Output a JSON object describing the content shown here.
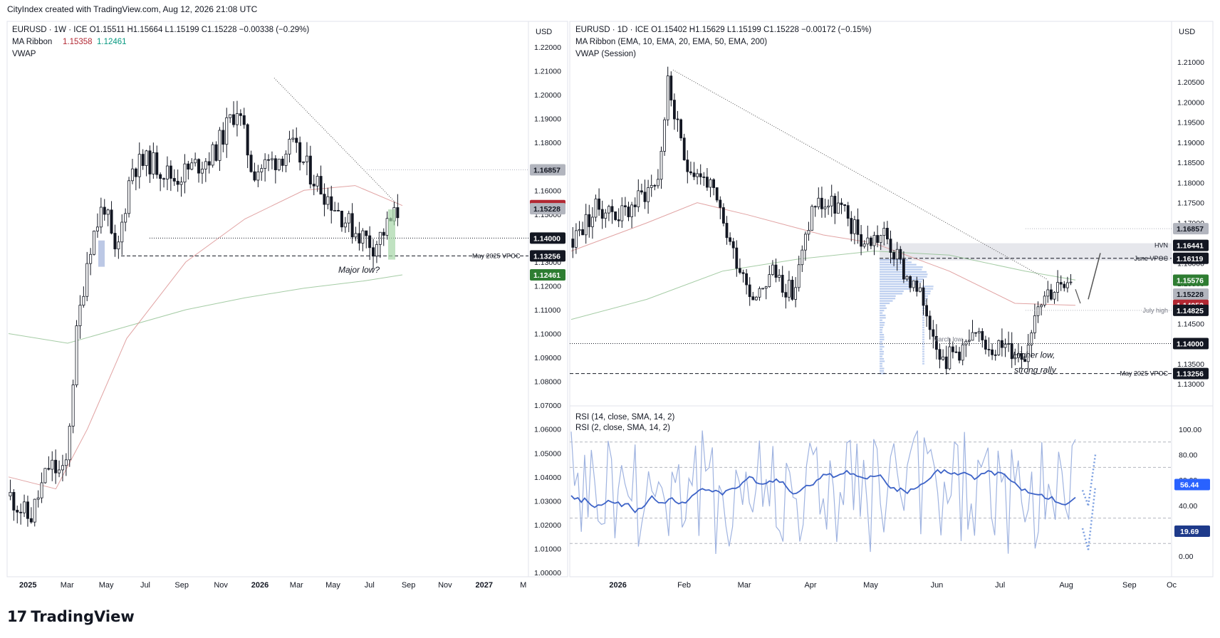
{
  "header": {
    "credit": "CityIndex created with TradingView.com, Aug 12, 2026 21:08 UTC"
  },
  "brand": {
    "logo": "17",
    "name": "TradingView"
  },
  "chart_data": [
    {
      "type": "candlestick",
      "panel": "left",
      "symbol_line": "EURUSD · 1W · ICE   O1.15511  H1.15664  L1.15199  C1.15228  −0.00338 (−0.29%)",
      "ma_line": {
        "label": "MA Ribbon",
        "v1": "1.15358",
        "v2": "1.12461",
        "c1": "#b22833",
        "c2": "#089981"
      },
      "vwap_label": "VWAP",
      "currency": "USD",
      "ylim": [
        1.0,
        1.22
      ],
      "y_ticks": [
        "1.22000",
        "1.21000",
        "1.20000",
        "1.19000",
        "1.18000",
        "1.17000",
        "1.16000",
        "1.15000",
        "1.14000",
        "1.13000",
        "1.12000",
        "1.11000",
        "1.10000",
        "1.09000",
        "1.08000",
        "1.07000",
        "1.06000",
        "1.05000",
        "1.04000",
        "1.03000",
        "1.02000",
        "1.01000",
        "1.00000"
      ],
      "x_ticks": [
        "2025",
        "Mar",
        "May",
        "Jul",
        "Sep",
        "Nov",
        "2026",
        "Mar",
        "May",
        "Jul",
        "Sep",
        "Nov",
        "2027",
        "M"
      ],
      "x_tick_pos": [
        0.04,
        0.115,
        0.19,
        0.265,
        0.335,
        0.41,
        0.485,
        0.555,
        0.625,
        0.695,
        0.77,
        0.84,
        0.915,
        0.99
      ],
      "price_badges": [
        {
          "text": "1.16857",
          "value": 1.16857,
          "bg": "#b2b5be",
          "fg": "#131722"
        },
        {
          "text": "1.15358",
          "value": 1.15358,
          "bg": "#b22833",
          "fg": "#ffffff"
        },
        {
          "text": "1.15228",
          "value": 1.15228,
          "bg": "#b2b5be",
          "fg": "#131722"
        },
        {
          "text": "1.14000",
          "value": 1.14,
          "bg": "#131722",
          "fg": "#ffffff"
        },
        {
          "text": "1.13256",
          "value": 1.13256,
          "bg": "#131722",
          "fg": "#ffffff"
        },
        {
          "text": "1.12461",
          "value": 1.12461,
          "bg": "#2e7d32",
          "fg": "#ffffff"
        }
      ],
      "annotations": [
        {
          "text": "May 2025 VPOC",
          "value": 1.13256
        },
        {
          "text": "Major low?",
          "value": 1.1255
        }
      ]
    },
    {
      "type": "candlestick",
      "panel": "right",
      "symbol_line": "EURUSD · 1D · ICE   O1.15402  H1.15629  L1.15199  C1.15228  −0.00172 (−0.15%)",
      "ma_line": {
        "label": "MA Ribbon (EMA, 10, EMA, 20, EMA, 50, EMA, 200)"
      },
      "vwap_label": "VWAP (Session)",
      "currency": "USD",
      "ylim": [
        1.127,
        1.213
      ],
      "y_ticks": [
        "1.21000",
        "1.20500",
        "1.20000",
        "1.19500",
        "1.19000",
        "1.18500",
        "1.18000",
        "1.17500",
        "1.17000",
        "1.16500",
        "1.16000",
        "1.15500",
        "1.15000",
        "1.14500",
        "1.14000",
        "1.13500",
        "1.13000"
      ],
      "x_ticks": [
        "2026",
        "Feb",
        "Mar",
        "Apr",
        "May",
        "Jun",
        "Jul",
        "Aug",
        "Sep",
        "Oc"
      ],
      "x_tick_pos": [
        0.08,
        0.19,
        0.29,
        0.4,
        0.5,
        0.61,
        0.715,
        0.825,
        0.93,
        1.0
      ],
      "price_badges": [
        {
          "text": "1.16857",
          "value": 1.16857,
          "bg": "#b2b5be",
          "fg": "#131722"
        },
        {
          "text": "1.16441",
          "value": 1.16441,
          "bg": "#131722",
          "fg": "#ffffff"
        },
        {
          "text": "1.16119",
          "value": 1.16119,
          "bg": "#131722",
          "fg": "#ffffff"
        },
        {
          "text": "1.15576",
          "value": 1.15576,
          "bg": "#2e7d32",
          "fg": "#ffffff"
        },
        {
          "text": "1.15228",
          "value": 1.15228,
          "bg": "#b2b5be",
          "fg": "#131722"
        },
        {
          "text": "1.14952",
          "value": 1.14952,
          "bg": "#b22833",
          "fg": "#ffffff"
        },
        {
          "text": "1.14825",
          "value": 1.14825,
          "bg": "#131722",
          "fg": "#ffffff"
        },
        {
          "text": "1.14000",
          "value": 1.14,
          "bg": "#131722",
          "fg": "#ffffff"
        },
        {
          "text": "1.13256",
          "value": 1.13256,
          "bg": "#131722",
          "fg": "#ffffff"
        }
      ],
      "annotations": [
        {
          "text": "HVN",
          "value": 1.16441
        },
        {
          "text": "June VPOC",
          "value": 1.16119
        },
        {
          "text": "July high",
          "value": 1.14825
        },
        {
          "text": "March low",
          "value": 1.14
        },
        {
          "text": "Higher low,",
          "value": 1.1365
        },
        {
          "text": "strong rally",
          "value": 1.1335
        },
        {
          "text": "May 2025 VPOC",
          "value": 1.13256
        }
      ]
    },
    {
      "type": "line",
      "panel": "right-rsi",
      "title1": "RSI (14, close, SMA, 14, 2)",
      "title2": "RSI (2, close, SMA, 14, 2)",
      "ylim": [
        -5,
        105
      ],
      "y_ticks": [
        "100.00",
        "80.00",
        "60.00",
        "40.00",
        "20.00",
        "0.00"
      ],
      "levels": [
        90,
        70,
        30,
        10
      ],
      "badges": [
        {
          "text": "56.44",
          "value": 56.44,
          "bg": "#2962ff"
        },
        {
          "text": "19.69",
          "value": 19.69,
          "bg": "#1e3a8a"
        }
      ],
      "series": [
        {
          "name": "RSI (14, close, SMA, 14, 2)",
          "color": "#3d63c7",
          "last": 56.44
        },
        {
          "name": "RSI (2, close, SMA, 14, 2)",
          "color": "#9fb3e0",
          "last": 19.69
        }
      ]
    }
  ]
}
